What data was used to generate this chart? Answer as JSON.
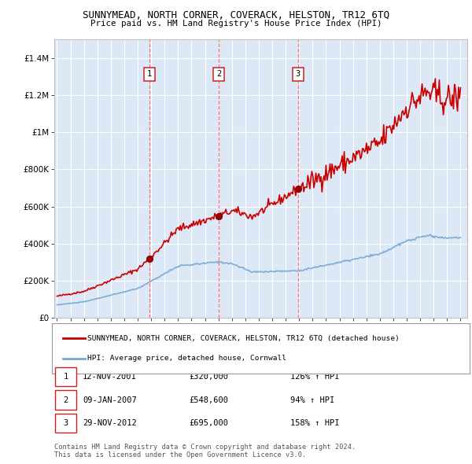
{
  "title": "SUNNYMEAD, NORTH CORNER, COVERACK, HELSTON, TR12 6TQ",
  "subtitle": "Price paid vs. HM Land Registry's House Price Index (HPI)",
  "background_color": "#ffffff",
  "plot_background": "#dce8f5",
  "grid_color": "#ffffff",
  "ylim": [
    0,
    1500000
  ],
  "yticks": [
    0,
    200000,
    400000,
    600000,
    800000,
    1000000,
    1200000,
    1400000
  ],
  "ytick_labels": [
    "£0",
    "£200K",
    "£400K",
    "£600K",
    "£800K",
    "£1M",
    "£1.2M",
    "£1.4M"
  ],
  "sale_dates": [
    2001.87,
    2007.03,
    2012.92
  ],
  "sale_prices": [
    320000,
    548600,
    695000
  ],
  "sale_labels": [
    "1",
    "2",
    "3"
  ],
  "sale_date_strs": [
    "12-NOV-2001",
    "09-JAN-2007",
    "29-NOV-2012"
  ],
  "sale_price_strs": [
    "£320,000",
    "£548,600",
    "£695,000"
  ],
  "sale_hpi_strs": [
    "126% ↑ HPI",
    "94% ↑ HPI",
    "158% ↑ HPI"
  ],
  "red_line_color": "#cc0000",
  "blue_line_color": "#7aa8d4",
  "dashed_vline_color": "#ff6666",
  "legend_label_red": "SUNNYMEAD, NORTH CORNER, COVERACK, HELSTON, TR12 6TQ (detached house)",
  "legend_label_blue": "HPI: Average price, detached house, Cornwall",
  "footer_text": "Contains HM Land Registry data © Crown copyright and database right 2024.\nThis data is licensed under the Open Government Licence v3.0.",
  "xmin": 1994.8,
  "xmax": 2025.5
}
